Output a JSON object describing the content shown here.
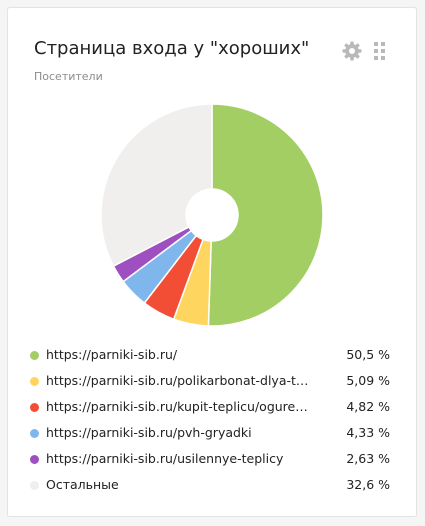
{
  "widget": {
    "title": "Страница входа у \"хороших\"",
    "subtitle": "Посетители"
  },
  "icons": {
    "settings": "gear-icon",
    "drag": "drag-handle-icon"
  },
  "chart_data": {
    "type": "pie",
    "title": "Страница входа у \"хороших\"",
    "subtitle": "Посетители",
    "donut": true,
    "legend_position": "bottom",
    "series": [
      {
        "name": "https://parniki-sib.ru/",
        "value": 50.5,
        "value_label": "50,5 %",
        "color": "#a2ce63"
      },
      {
        "name": "https://parniki-sib.ru/polikarbonat-dlya-tep...",
        "value": 5.09,
        "value_label": "5,09 %",
        "color": "#fdd55f"
      },
      {
        "name": "https://parniki-sib.ru/kupit-teplicu/ogurech...",
        "value": 4.82,
        "value_label": "4,82 %",
        "color": "#f24e35"
      },
      {
        "name": "https://parniki-sib.ru/pvh-gryadki",
        "value": 4.33,
        "value_label": "4,33 %",
        "color": "#7fb7ec"
      },
      {
        "name": "https://parniki-sib.ru/usilennye-teplicy",
        "value": 2.63,
        "value_label": "2,63 %",
        "color": "#9e4fc0"
      },
      {
        "name": "Остальные",
        "value": 32.6,
        "value_label": "32,6 %",
        "color": "#f0efed"
      }
    ]
  }
}
